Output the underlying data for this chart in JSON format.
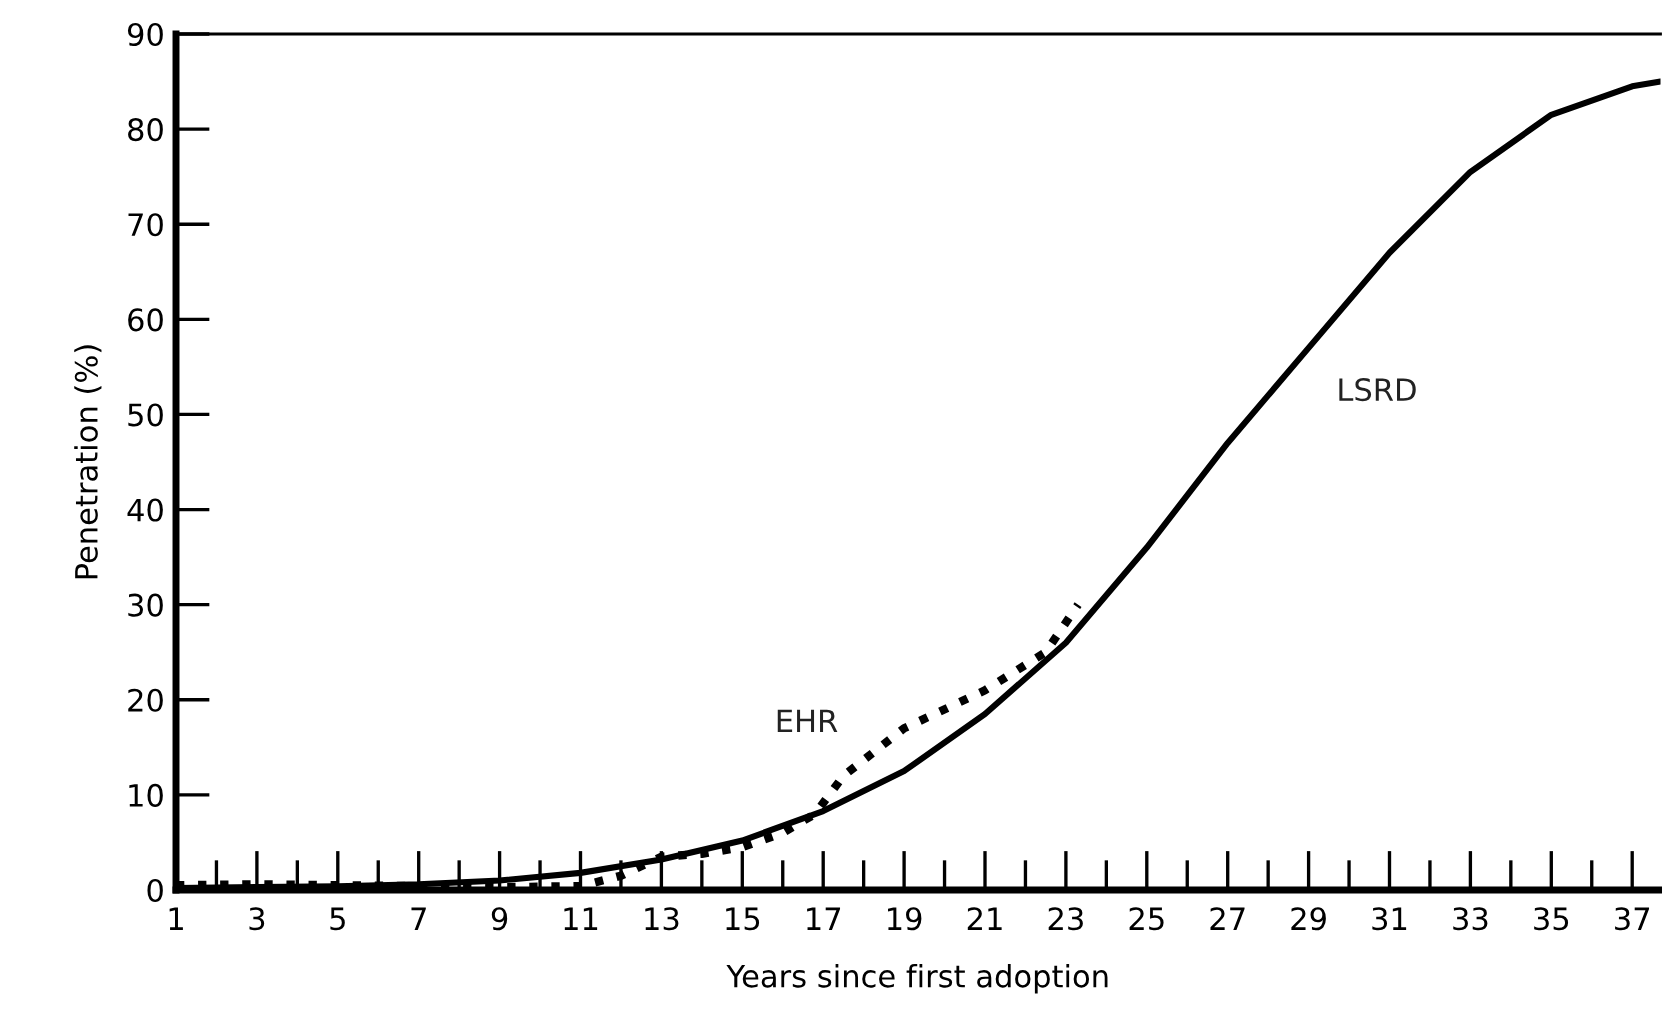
{
  "chart_data": {
    "type": "line",
    "xlabel": "Years since first adoption",
    "ylabel": "Penetration (%)",
    "xlim": [
      1,
      37.7
    ],
    "ylim": [
      0,
      90
    ],
    "xticks": [
      1,
      {
        "value": 2,
        "label": null
      },
      3,
      {
        "value": 4,
        "label": null
      },
      5,
      {
        "value": 6,
        "label": null
      },
      7,
      {
        "value": 8,
        "label": null
      },
      9,
      {
        "value": 10,
        "label": null
      },
      11,
      {
        "value": 12,
        "label": null
      },
      13,
      {
        "value": 14,
        "label": null
      },
      15,
      {
        "value": 16,
        "label": null
      },
      17,
      {
        "value": 18,
        "label": null
      },
      19,
      {
        "value": 20,
        "label": null
      },
      21,
      {
        "value": 22,
        "label": null
      },
      23,
      {
        "value": 24,
        "label": null
      },
      25,
      {
        "value": 26,
        "label": null
      },
      27,
      {
        "value": 28,
        "label": null
      },
      29,
      {
        "value": 30,
        "label": null
      },
      31,
      {
        "value": 32,
        "label": null
      },
      33,
      {
        "value": 34,
        "label": null
      },
      35,
      {
        "value": 36,
        "label": null
      },
      37
    ],
    "yticks": [
      0,
      10,
      20,
      30,
      40,
      50,
      60,
      70,
      80,
      90
    ],
    "grid": false,
    "legend": false,
    "marker": "none",
    "series": [
      {
        "color": "#000000",
        "line_style": "solid",
        "x": [
          1,
          3,
          5,
          7,
          9,
          11,
          13,
          15,
          17,
          19,
          21,
          23,
          25,
          27,
          29,
          31,
          33,
          35,
          37,
          37.7
        ],
        "values": [
          0.2,
          0.3,
          0.4,
          0.6,
          1.0,
          1.8,
          3.2,
          5.2,
          8.3,
          12.5,
          18.5,
          26,
          36,
          47,
          57,
          67,
          75.5,
          81.5,
          84.5,
          85
        ]
      },
      {
        "color": "#000000",
        "line_style": "dotted",
        "x": [
          1,
          3,
          5,
          7,
          9,
          11,
          12,
          13,
          14,
          15,
          16,
          16.8,
          17.5,
          19,
          21,
          22.5,
          23.3
        ],
        "values": [
          0.5,
          0.6,
          0.5,
          0.4,
          0.3,
          0.4,
          1.5,
          3.5,
          3.8,
          4.5,
          6,
          8,
          12,
          17,
          21,
          25,
          30
        ]
      }
    ],
    "annotations": [
      {
        "text": "EHR",
        "x": 18,
        "y": 14
      },
      {
        "text": "LSRD",
        "x": 29,
        "y": 57
      }
    ]
  }
}
